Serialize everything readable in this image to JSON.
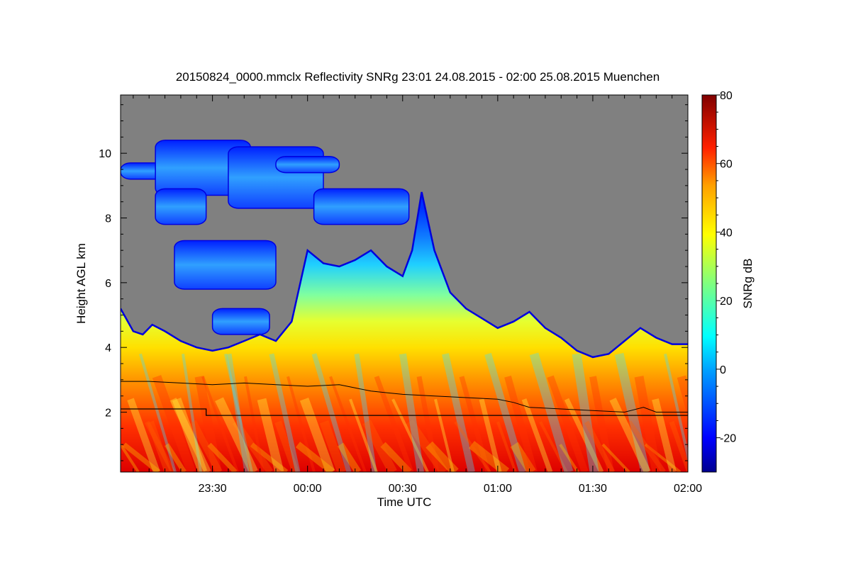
{
  "chart_data": {
    "type": "heatmap",
    "title": "20150824_0000.mmclx Reflectivity SNRg   23:01 24.08.2015 - 02:00 25.08.2015 Muenchen",
    "xlabel": "Time UTC",
    "ylabel": "Height AGL km",
    "x_range_minutes": [
      -59,
      120
    ],
    "x_range_labels": [
      "23:01",
      "02:00"
    ],
    "x_ticks": [
      {
        "label": "23:30",
        "minutes": -30
      },
      {
        "label": "00:00",
        "minutes": 0
      },
      {
        "label": "00:30",
        "minutes": 30
      },
      {
        "label": "01:00",
        "minutes": 60
      },
      {
        "label": "01:30",
        "minutes": 90
      },
      {
        "label": "02:00",
        "minutes": 120
      }
    ],
    "y_range_km": [
      0.15,
      11.8
    ],
    "y_ticks": [
      {
        "label": "2",
        "value": 2
      },
      {
        "label": "4",
        "value": 4
      },
      {
        "label": "6",
        "value": 6
      },
      {
        "label": "8",
        "value": 8
      },
      {
        "label": "10",
        "value": 10
      }
    ],
    "colorbar": {
      "label": "SNRg dB",
      "range": [
        -30,
        80
      ],
      "ticks": [
        {
          "label": "80",
          "value": 80
        },
        {
          "label": "60",
          "value": 60
        },
        {
          "label": "40",
          "value": 40
        },
        {
          "label": "20",
          "value": 20
        },
        {
          "label": "0",
          "value": 0
        },
        {
          "label": "-20",
          "value": -20
        }
      ]
    },
    "no_signal_color": "#808080",
    "cloud_top_profile": [
      {
        "t": -59,
        "h": 5.2
      },
      {
        "t": -55,
        "h": 4.5
      },
      {
        "t": -52,
        "h": 4.4
      },
      {
        "t": -49,
        "h": 4.7
      },
      {
        "t": -45,
        "h": 4.5
      },
      {
        "t": -40,
        "h": 4.2
      },
      {
        "t": -35,
        "h": 4.0
      },
      {
        "t": -30,
        "h": 3.9
      },
      {
        "t": -25,
        "h": 4.0
      },
      {
        "t": -20,
        "h": 4.2
      },
      {
        "t": -15,
        "h": 4.4
      },
      {
        "t": -10,
        "h": 4.2
      },
      {
        "t": -5,
        "h": 4.8
      },
      {
        "t": 0,
        "h": 7.0
      },
      {
        "t": 5,
        "h": 6.6
      },
      {
        "t": 10,
        "h": 6.5
      },
      {
        "t": 15,
        "h": 6.7
      },
      {
        "t": 20,
        "h": 7.0
      },
      {
        "t": 25,
        "h": 6.5
      },
      {
        "t": 30,
        "h": 6.2
      },
      {
        "t": 33,
        "h": 7.0
      },
      {
        "t": 36,
        "h": 8.8
      },
      {
        "t": 40,
        "h": 7.0
      },
      {
        "t": 45,
        "h": 5.7
      },
      {
        "t": 50,
        "h": 5.2
      },
      {
        "t": 55,
        "h": 4.9
      },
      {
        "t": 60,
        "h": 4.6
      },
      {
        "t": 65,
        "h": 4.8
      },
      {
        "t": 70,
        "h": 5.1
      },
      {
        "t": 75,
        "h": 4.6
      },
      {
        "t": 80,
        "h": 4.3
      },
      {
        "t": 85,
        "h": 3.9
      },
      {
        "t": 90,
        "h": 3.7
      },
      {
        "t": 95,
        "h": 3.8
      },
      {
        "t": 100,
        "h": 4.2
      },
      {
        "t": 105,
        "h": 4.6
      },
      {
        "t": 110,
        "h": 4.3
      },
      {
        "t": 115,
        "h": 4.1
      },
      {
        "t": 120,
        "h": 4.1
      }
    ],
    "upper_layers": [
      {
        "t_start": -59,
        "t_end": -30,
        "h_bottom": 9.2,
        "h_top": 9.7
      },
      {
        "t_start": -48,
        "t_end": -18,
        "h_bottom": 8.7,
        "h_top": 10.4
      },
      {
        "t_start": -25,
        "t_end": 5,
        "h_bottom": 8.3,
        "h_top": 10.2
      },
      {
        "t_start": -10,
        "t_end": 10,
        "h_bottom": 9.4,
        "h_top": 9.9
      },
      {
        "t_start": 2,
        "t_end": 32,
        "h_bottom": 7.8,
        "h_top": 8.9
      },
      {
        "t_start": -48,
        "t_end": -32,
        "h_bottom": 7.8,
        "h_top": 8.9
      },
      {
        "t_start": -42,
        "t_end": -10,
        "h_bottom": 5.8,
        "h_top": 7.3
      },
      {
        "t_start": -30,
        "t_end": -12,
        "h_bottom": 4.4,
        "h_top": 5.2
      }
    ],
    "melting_layer_line": [
      {
        "t": -59,
        "h": 2.95
      },
      {
        "t": -50,
        "h": 2.95
      },
      {
        "t": -40,
        "h": 2.9
      },
      {
        "t": -30,
        "h": 2.85
      },
      {
        "t": -20,
        "h": 2.9
      },
      {
        "t": -10,
        "h": 2.85
      },
      {
        "t": 0,
        "h": 2.8
      },
      {
        "t": 10,
        "h": 2.85
      },
      {
        "t": 15,
        "h": 2.75
      },
      {
        "t": 20,
        "h": 2.65
      },
      {
        "t": 25,
        "h": 2.6
      },
      {
        "t": 30,
        "h": 2.55
      },
      {
        "t": 40,
        "h": 2.5
      },
      {
        "t": 50,
        "h": 2.45
      },
      {
        "t": 60,
        "h": 2.4
      },
      {
        "t": 65,
        "h": 2.3
      },
      {
        "t": 70,
        "h": 2.15
      },
      {
        "t": 80,
        "h": 2.1
      },
      {
        "t": 90,
        "h": 2.05
      },
      {
        "t": 100,
        "h": 2.0
      },
      {
        "t": 106,
        "h": 2.15
      },
      {
        "t": 110,
        "h": 2.0
      },
      {
        "t": 120,
        "h": 2.0
      }
    ],
    "lower_line": [
      {
        "t": -59,
        "h": 2.1
      },
      {
        "t": -32,
        "h": 2.1
      },
      {
        "t": -32,
        "h": 1.9
      },
      {
        "t": 122,
        "h": 1.9
      }
    ]
  }
}
